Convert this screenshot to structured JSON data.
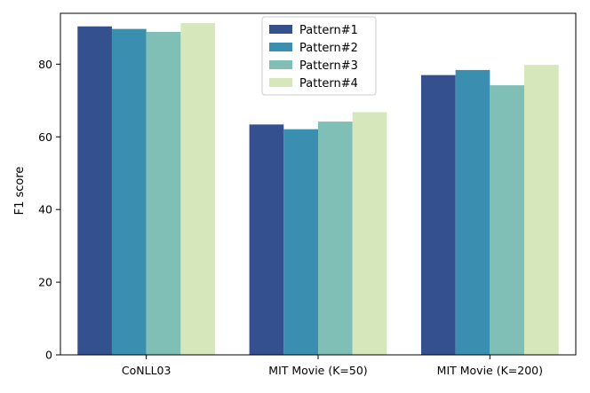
{
  "chart_data": {
    "type": "bar",
    "title": "",
    "xlabel": "",
    "ylabel": "F1 score",
    "ylim": [
      0,
      94
    ],
    "yticks": [
      0,
      20,
      40,
      60,
      80
    ],
    "categories": [
      "CoNLL03",
      "MIT Movie (K=50)",
      "MIT Movie (K=200)"
    ],
    "series": [
      {
        "name": "Pattern#1",
        "color": "#34508f",
        "values": [
          90.4,
          63.4,
          77.0
        ]
      },
      {
        "name": "Pattern#2",
        "color": "#3a8fb0",
        "values": [
          89.7,
          62.1,
          78.4
        ]
      },
      {
        "name": "Pattern#3",
        "color": "#7fbfb5",
        "values": [
          88.9,
          64.2,
          74.2
        ]
      },
      {
        "name": "Pattern#4",
        "color": "#d6e7bb",
        "values": [
          91.3,
          66.8,
          79.8
        ]
      }
    ],
    "legend": {
      "position": "top-center"
    },
    "grid": false
  }
}
